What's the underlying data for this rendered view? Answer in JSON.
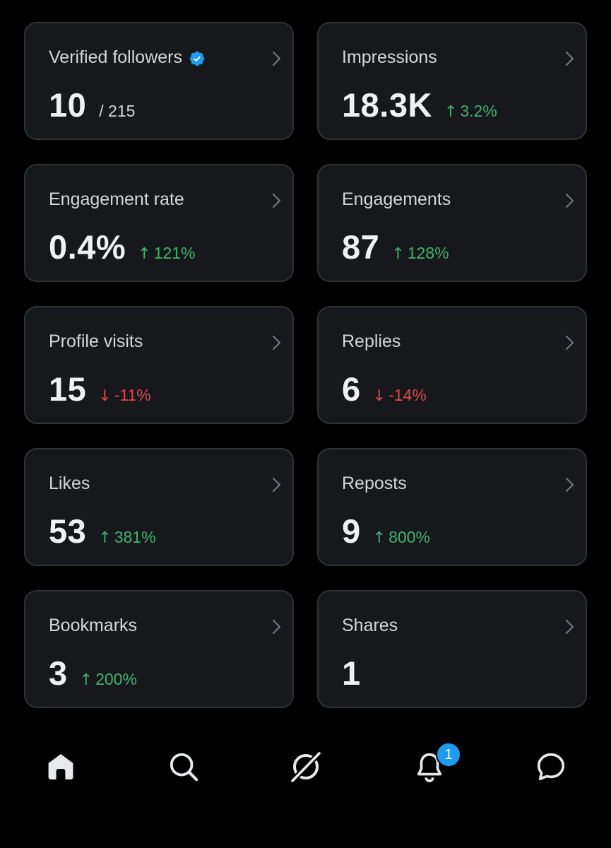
{
  "colors": {
    "background": "#000000",
    "card": "#16181c",
    "card_border": "#2f3336",
    "positive": "#3fb36e",
    "negative": "#e0474c",
    "accent": "#1d9bf0"
  },
  "cards": [
    {
      "title": "Verified followers",
      "value": "10",
      "suffix": "/ 215",
      "change": "",
      "direction": "",
      "verified_icon": "verified-badge-icon"
    },
    {
      "title": "Impressions",
      "value": "18.3K",
      "suffix": "",
      "change": "3.2%",
      "direction": "up"
    },
    {
      "title": "Engagement rate",
      "value": "0.4%",
      "suffix": "",
      "change": "121%",
      "direction": "up"
    },
    {
      "title": "Engagements",
      "value": "87",
      "suffix": "",
      "change": "128%",
      "direction": "up"
    },
    {
      "title": "Profile visits",
      "value": "15",
      "suffix": "",
      "change": "-11%",
      "direction": "down"
    },
    {
      "title": "Replies",
      "value": "6",
      "suffix": "",
      "change": "-14%",
      "direction": "down"
    },
    {
      "title": "Likes",
      "value": "53",
      "suffix": "",
      "change": "381%",
      "direction": "up"
    },
    {
      "title": "Reposts",
      "value": "9",
      "suffix": "",
      "change": "800%",
      "direction": "up"
    },
    {
      "title": "Bookmarks",
      "value": "3",
      "suffix": "",
      "change": "200%",
      "direction": "up"
    },
    {
      "title": "Shares",
      "value": "1",
      "suffix": "",
      "change": "",
      "direction": ""
    }
  ],
  "nav": {
    "items": [
      "home-icon",
      "search-icon",
      "grok-icon",
      "notifications-icon",
      "messages-icon"
    ],
    "notification_count": "1"
  }
}
